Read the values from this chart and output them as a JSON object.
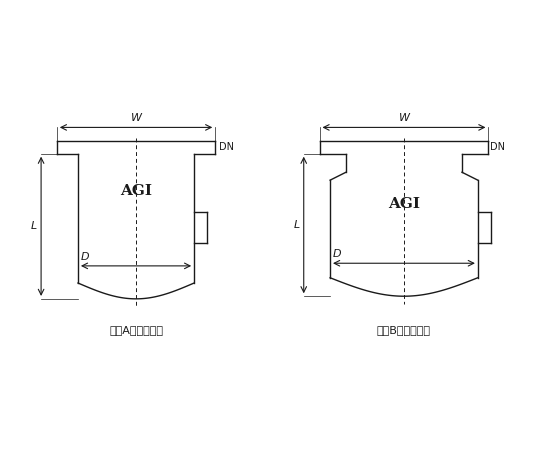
{
  "bg_color": "#ffffff",
  "line_color": "#1a1a1a",
  "dim_color": "#1a1a1a",
  "text_color": "#1a1a1a",
  "label_A": "《《Aタイプ》》",
  "label_B": "《《Bタイプ》》",
  "agi_label": "AGI",
  "dim_W": "W",
  "dim_L": "L",
  "dim_D": "D",
  "dim_DN": "DN"
}
